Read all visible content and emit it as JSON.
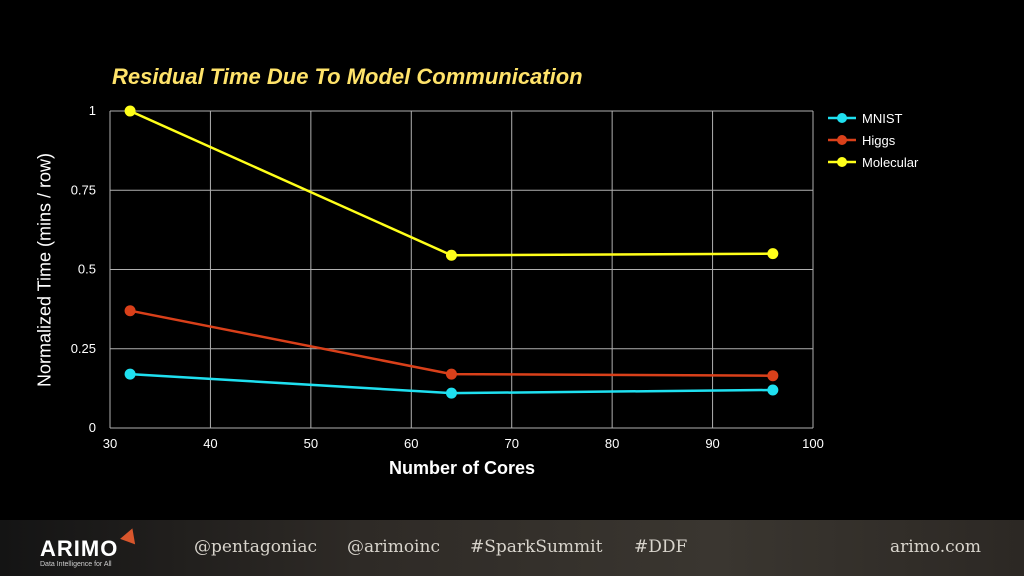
{
  "chart_data": {
    "type": "line",
    "title": "Residual Time Due To Model Communication",
    "xlabel": "Number of Cores",
    "ylabel": "Normalized Time (mins / row)",
    "xlim": [
      30,
      100
    ],
    "ylim": [
      0,
      1
    ],
    "xticks": [
      "30",
      "40",
      "50",
      "60",
      "70",
      "80",
      "90",
      "100"
    ],
    "yticks": [
      "0",
      "0.25",
      "0.5",
      "0.75",
      "1"
    ],
    "grid": true,
    "legend_position": "right",
    "x": [
      32,
      64,
      96
    ],
    "series": [
      {
        "name": "MNIST",
        "color": "#1fe0f0",
        "values": [
          0.17,
          0.11,
          0.12
        ]
      },
      {
        "name": "Higgs",
        "color": "#d9401a",
        "values": [
          0.37,
          0.17,
          0.165
        ]
      },
      {
        "name": "Molecular",
        "color": "#ffff1a",
        "values": [
          1.0,
          0.545,
          0.55
        ]
      }
    ]
  },
  "footer": {
    "logo": "ARIMO",
    "logo_tagline": "Data Intelligence for All",
    "handles": [
      "@pentagoniac",
      "@arimoinc",
      "#SparkSummit",
      "#DDF"
    ],
    "website": "arimo.com"
  }
}
